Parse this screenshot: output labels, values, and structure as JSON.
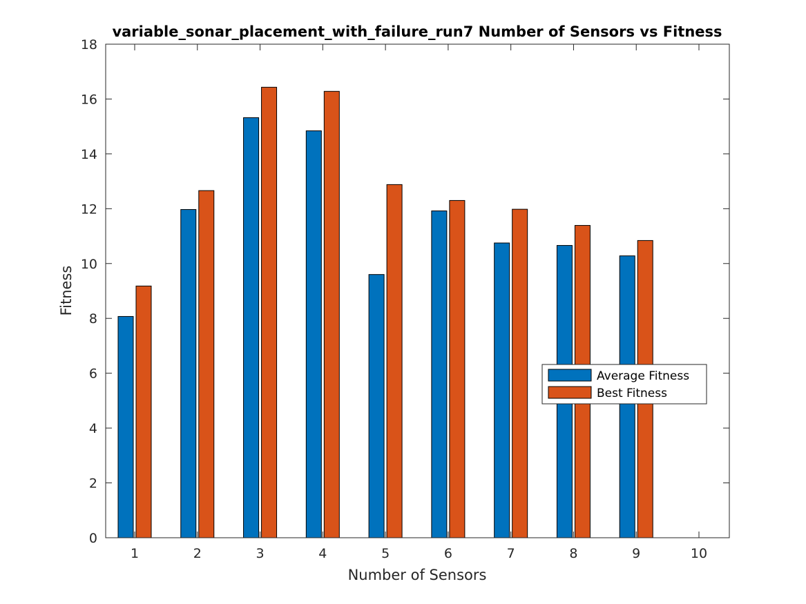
{
  "chart_data": {
    "type": "bar",
    "title": "variable_sonar_placement_with_failure_run7 Number of Sensors vs Fitness",
    "xlabel": "Number of Sensors",
    "ylabel": "Fitness",
    "categories": [
      "1",
      "2",
      "3",
      "4",
      "5",
      "6",
      "7",
      "8",
      "9",
      "10"
    ],
    "ylim": [
      0,
      18
    ],
    "yticks": [
      "0",
      "2",
      "4",
      "6",
      "8",
      "10",
      "12",
      "14",
      "16",
      "18"
    ],
    "grid": false,
    "legend_position": "right",
    "series": [
      {
        "name": "Average Fitness",
        "color": "#0072bd",
        "values": [
          8.07,
          11.97,
          15.32,
          14.84,
          9.6,
          11.92,
          10.75,
          10.66,
          10.28,
          null
        ]
      },
      {
        "name": "Best Fitness",
        "color": "#d95319",
        "values": [
          9.18,
          12.66,
          16.43,
          16.28,
          12.88,
          12.3,
          11.98,
          11.39,
          10.84,
          null
        ]
      }
    ]
  }
}
